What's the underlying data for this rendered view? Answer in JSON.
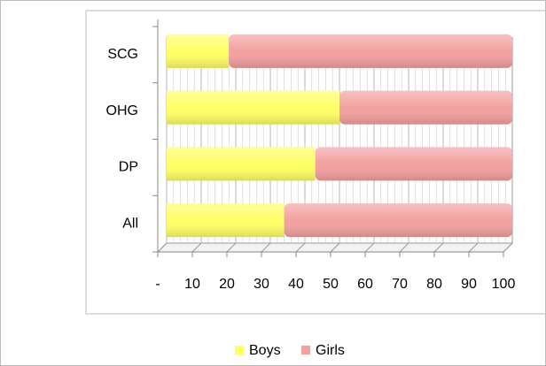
{
  "chart_data": {
    "type": "bar",
    "orientation": "horizontal",
    "stacked": true,
    "categories": [
      "All",
      "DP",
      "OHG",
      "SCG"
    ],
    "series": [
      {
        "name": "Boys",
        "color": "#ffff66",
        "values": [
          34,
          43,
          50,
          18
        ]
      },
      {
        "name": "Girls",
        "color": "#f4a0a0",
        "values": [
          66,
          57,
          50,
          82
        ]
      }
    ],
    "xlim": [
      0,
      100
    ],
    "xticks": [
      {
        "value": 0,
        "label": "-"
      },
      10,
      20,
      30,
      40,
      50,
      60,
      70,
      80,
      90,
      100
    ],
    "grid": true,
    "legend": "bottom"
  }
}
